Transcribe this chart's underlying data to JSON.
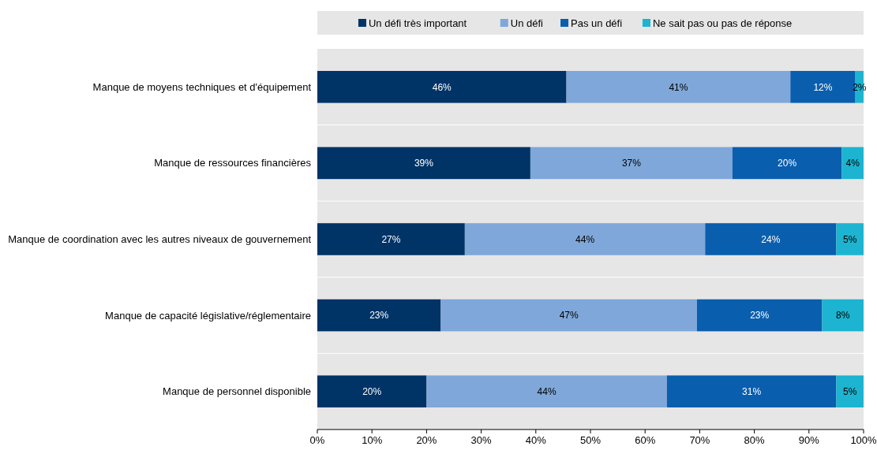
{
  "chart_data": {
    "type": "bar",
    "orientation": "horizontal",
    "stacked": true,
    "categories": [
      "Manque de moyens techniques et d'équipement",
      "Manque de ressources financières",
      "Manque de coordination avec les autres niveaux de gouvernement",
      "Manque de capacité législative/réglementaire",
      "Manque de personnel disponible"
    ],
    "series": [
      {
        "name": "Un défi très important",
        "color": "#003366",
        "values": [
          45.6,
          39,
          27,
          22.6,
          20
        ],
        "value_labels": [
          "46%",
          "39%",
          "27%",
          "23%",
          "20%"
        ]
      },
      {
        "name": "Un défi",
        "color": "#7fa7d9",
        "values": [
          41.0,
          37,
          44,
          46.9,
          44
        ],
        "value_labels": [
          "41%",
          "37%",
          "44%",
          "47%",
          "44%"
        ]
      },
      {
        "name": "Pas un défi",
        "color": "#0a5eae",
        "values": [
          11.9,
          20,
          24,
          22.9,
          31
        ],
        "value_labels": [
          "12%",
          "20%",
          "24%",
          "23%",
          "31%"
        ]
      },
      {
        "name": "Ne sait pas ou pas de réponse",
        "color": "#1cb4d0",
        "values": [
          1.5,
          4,
          5,
          7.6,
          5
        ],
        "value_labels": [
          "2%",
          "4%",
          "5%",
          "8%",
          "5%"
        ]
      }
    ],
    "xlim": [
      0,
      100
    ],
    "xticks": [
      {
        "value": 0,
        "label": "0%"
      },
      {
        "value": 10,
        "label": "10%"
      },
      {
        "value": 20,
        "label": "20%"
      },
      {
        "value": 30,
        "label": "30%"
      },
      {
        "value": 40,
        "label": "40%"
      },
      {
        "value": 50,
        "label": "50%"
      },
      {
        "value": 60,
        "label": "60%"
      },
      {
        "value": 70,
        "label": "70%"
      },
      {
        "value": 80,
        "label": "80%"
      },
      {
        "value": 90,
        "label": "90%"
      },
      {
        "value": 100,
        "label": "100%"
      }
    ],
    "legend": "top",
    "grid": false
  }
}
